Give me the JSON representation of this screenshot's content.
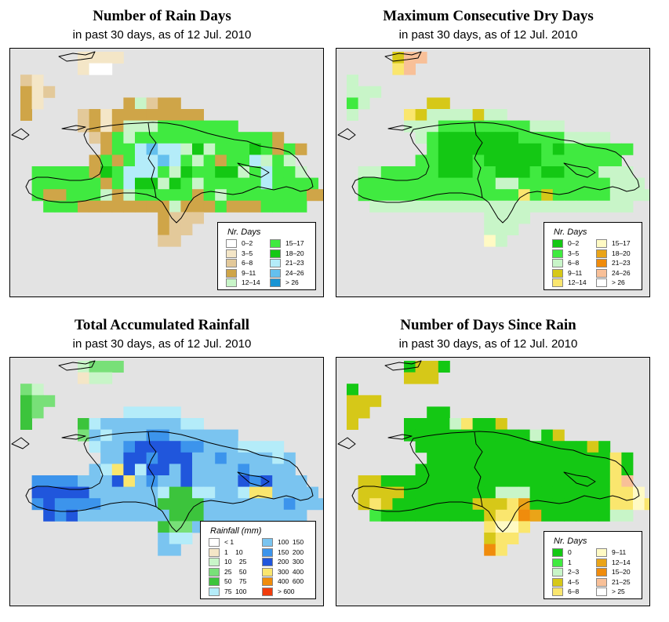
{
  "panels": [
    {
      "id": "rain-days",
      "title": "Number of Rain Days",
      "subtitle": "in past 30 days, as of  12 Jul. 2010",
      "legend": {
        "title": "Nr. Days",
        "items": [
          {
            "label": "0–2",
            "color": "#ffffff"
          },
          {
            "label": "3–5",
            "color": "#f4e6c7"
          },
          {
            "label": "6–8",
            "color": "#e3c99a"
          },
          {
            "label": "9–11",
            "color": "#cfa548"
          },
          {
            "label": "12–14",
            "color": "#c8f5c8"
          },
          {
            "label": "15–17",
            "color": "#40ea40"
          },
          {
            "label": "18–20",
            "color": "#14c814"
          },
          {
            "label": "21–23",
            "color": "#b4ecf9"
          },
          {
            "label": "24–26",
            "color": "#64c0ee"
          },
          {
            "label": "> 26",
            "color": "#1894d4"
          }
        ]
      },
      "palette": [
        "#ffffff",
        "#f4e6c7",
        "#e3c99a",
        "#cfa548",
        "#c8f5c8",
        "#40ea40",
        "#14c814",
        "#b4ecf9",
        "#64c0ee",
        "#1894d4"
      ],
      "grid": [
        ". . . . . 1 1 1 1 . . . . . . . . . . . . . . . . . .",
        ". . . . . 1 0 0 . . . . . . . . . . . . . . . . . . .",
        "2 1 . . . . . . . . . . . . . . . . . . . . . . . . .",
        "3 1 2 . . . . . . . . . . . . . . . . . . . . . . . .",
        "3 1 . . . . . . . 3 4 2 3 3 . . . . . . . . . . . . .",
        "3 . . . . 2 3 1 3 3 3 3 3 3 3 3 . . . . . . . . . . .",
        ". . . . . 2 3 1 3 4 4 4 5 5 5 5 5 5 5 . . . . . . . .",
        ". . . . . . 2 3 5 4 5 5 5 5 5 5 5 5 5 5 5 5 3 . . . .",
        ". . . . . . . 3 5 5 7 8 7 7 4 6 4 5 5 5 6 5 3 5 3 . .",
        ". . . . . . 3 5 3 5 7 7 8 7 5 4 5 3 5 5 7 4 5 4 . . .",
        ". 5 5 5 5 5 3 6 5 7 7 7 5 4 6 5 5 6 6 4 5 7 5 5 4 . .",
        ". 5 5 5 5 5 5 3 5 7 6 6 4 6 5 4 5 5 5 5 5 7 5 5 5 5 .",
        ". 5 3 3 5 5 5 4 3 4 5 5 5 5 5 3 5 4 5 5 5 5 5 5 5 3 3",
        ". . 5 5 5 3 3 3 3 3 3 3 3 4 3 3 3 5 3 3 3 5 5 5 5 . .",
        ". . . . . . . . . . . . 3 2 2 2 . . . . . . . . . . .",
        ". . . . . . . . . . . . 3 2 2 . . . . . . . . . . . .",
        ". . . . . . . . . . . . 2 2 . . . . . . . . . . . . ."
      ]
    },
    {
      "id": "dry-days",
      "title": "Maximum Consecutive Dry Days",
      "subtitle": "in past 30 days, as of  12 Jul. 2010",
      "legend": {
        "title": "Nr. Days",
        "items": [
          {
            "label": "0–2",
            "color": "#14c814"
          },
          {
            "label": "3–5",
            "color": "#40ea40"
          },
          {
            "label": "6–8",
            "color": "#c8f5c8"
          },
          {
            "label": "9–11",
            "color": "#d6c818"
          },
          {
            "label": "12–14",
            "color": "#fae66e"
          },
          {
            "label": "15–17",
            "color": "#fffac4"
          },
          {
            "label": "18–20",
            "color": "#eaa418"
          },
          {
            "label": "21–23",
            "color": "#f08c0c"
          },
          {
            "label": "24–26",
            "color": "#f8c098"
          },
          {
            "label": "> 26",
            "color": "#ffffff"
          }
        ]
      },
      "palette": [
        "#14c814",
        "#40ea40",
        "#c8f5c8",
        "#d6c818",
        "#fae66e",
        "#fffac4",
        "#eaa418",
        "#f08c0c",
        "#f8c098",
        "#ffffff"
      ],
      "grid": [
        ". . . . 3 8 8 . . . . . . . . . . . . . . . . . . . .",
        ". . . . 4 8 . . . . . . . . . . . . . . . . . . . . .",
        "2 . . . . . . . . . . . . . . . . . . . . . . . . . .",
        "2 2 2 . . . . . . . . . . . . . . . . . . . . . . . .",
        "1 2 . . . . . 3 3 . . . . . . . . . . . . . . . . . .",
        "2 . . . . 4 3 2 2 2 2 3 2 2 . . . . . . . . . . . . .",
        ". . . . . 2 2 2 1 1 1 1 1 1 1 1 2 2 2 . . . . . . . .",
        ". . . . . . 2 1 0 0 0 0 0 0 0 1 1 1 1 2 2 2 2 . . . .",
        ". . . . . . . 1 0 0 0 0 0 0 0 0 0 1 0 1 1 1 1 1 1 . .",
        ". . . . . . 1 1 0 0 0 1 0 0 0 0 0 1 1 1 1 1 1 1 . . .",
        ". 2 2 1 1 1 1 1 0 0 0 1 1 0 0 0 1 0 0 1 1 1 2 2 2 . .",
        ". 1 1 1 1 1 1 1 1 1 1 1 1 2 2 1 1 1 1 1 1 1 1 2 2 2 .",
        ". 1 1 1 1 1 1 1 1 1 1 1 1 1 1 4 1 3 1 1 1 1 1 2 2 2 2",
        ". . 2 2 2 2 2 2 2 2 2 2 2 2 2 2 2 2 2 2 2 2 2 2 2 . .",
        ". . . . . . . . . . . . 2 2 2 2 . . . . . . . . . . .",
        ". . . . . . . . . . . . 2 2 2 . . . . . . . . . . . .",
        ". . . . . . . . . . . . 5 2 . . . . . . . . . . . . ."
      ]
    },
    {
      "id": "rainfall",
      "title": "Total Accumulated Rainfall",
      "subtitle": "in past 30 days, as of  12 Jul. 2010",
      "legend": {
        "title": "Rainfall (mm)",
        "items": [
          {
            "label": "< 1",
            "color": "#ffffff"
          },
          {
            "label": "1    10",
            "color": "#f4e6c7"
          },
          {
            "label": "10    25",
            "color": "#c8f5c8"
          },
          {
            "label": "25    50",
            "color": "#78e078"
          },
          {
            "label": "50    75",
            "color": "#3cc43c"
          },
          {
            "label": "75  100",
            "color": "#b4ecf9"
          },
          {
            "label": "100  150",
            "color": "#7ac4f0"
          },
          {
            "label": "150  200",
            "color": "#3c94ec"
          },
          {
            "label": "200  300",
            "color": "#2056dc"
          },
          {
            "label": "300  400",
            "color": "#fae66e"
          },
          {
            "label": "400  600",
            "color": "#f08c0c"
          },
          {
            "label": "> 600",
            "color": "#f03c0c"
          }
        ]
      },
      "palette": [
        "#ffffff",
        "#f4e6c7",
        "#c8f5c8",
        "#78e078",
        "#3cc43c",
        "#b4ecf9",
        "#7ac4f0",
        "#3c94ec",
        "#2056dc",
        "#fae66e",
        "#f08c0c",
        "#f03c0c"
      ],
      "grid": [
        ". . . . . 2 3 3 3 . . . . . . . . . . . . . . . . . .",
        ". . . . . 1 2 2 . . . . . . . . . . . . . . . . . . .",
        "3 2 . . . . . . . . . . . . . . . . . . . . . . . . .",
        "4 3 3 . . . . . . . . . . . . . . . . . . . . . . . .",
        "4 3 . . . . . . . 5 5 5 5 5 . . . . . . . . . . . . .",
        "4 . . . . 4 5 6 6 6 6 6 6 6 5 5 . . . . . . . . . . .",
        ". . . . . 3 6 5 6 6 6 7 7 6 6 6 6 6 6 . . . . . . . .",
        ". . . . . . 5 6 6 7 8 8 8 8 7 7 6 6 6 5 5 5 5 . . . .",
        ". . . . . . . 6 6 8 8 7 8 8 8 6 6 7 6 6 6 6 5 6 . . .",
        ". . . . . . 6 5 9 8 5 8 8 6 8 6 6 6 6 7 6 6 6 6 . . .",
        ". 7 7 7 7 6 6 6 8 9 6 7 6 6 8 6 6 6 6 8 7 8 6 6 6 . .",
        ". 8 8 8 8 8 6 6 6 6 6 6 5 4 4 5 5 6 6 5 9 9 6 6 6 6 .",
        ". 7 8 7 7 7 7 6 6 6 6 6 4 4 4 4 6 6 6 6 6 6 6 7 6 6 6",
        ". . 8 7 8 6 6 6 6 6 6 6 6 4 4 4 6 6 6 6 6 6 6 6 6 . .",
        ". . . . . . . . . . . . 4 3 3 6 . . . . . . . . . . .",
        ". . . . . . . . . . . . 6 5 5 . . . . . . . . . . . .",
        ". . . . . . . . . . . . 6 6 . . . . . . . . . . . . ."
      ]
    },
    {
      "id": "since-rain",
      "title": "Number of Days Since Rain",
      "subtitle": "in past 30 days, as of  12 Jul. 2010",
      "legend": {
        "title": "Nr. Days",
        "items": [
          {
            "label": "0",
            "color": "#14c814"
          },
          {
            "label": "1",
            "color": "#40ea40"
          },
          {
            "label": "2–3",
            "color": "#c8f5c8"
          },
          {
            "label": "4–5",
            "color": "#d6c818"
          },
          {
            "label": "6–8",
            "color": "#fae66e"
          },
          {
            "label": "9–11",
            "color": "#fffac4"
          },
          {
            "label": "12–14",
            "color": "#eaa418"
          },
          {
            "label": "15–20",
            "color": "#f08c0c"
          },
          {
            "label": "21–25",
            "color": "#f8c098"
          },
          {
            "label": "> 25",
            "color": "#ffffff"
          }
        ]
      },
      "palette": [
        "#14c814",
        "#40ea40",
        "#c8f5c8",
        "#d6c818",
        "#fae66e",
        "#fffac4",
        "#eaa418",
        "#f08c0c",
        "#f8c098",
        "#ffffff"
      ],
      "grid": [
        ". . . . . 0 3 3 0 . . . . . . . . . . . . . . . . . .",
        ". . . . . 3 3 3 . . . . . . . . . . . . . . . . . . .",
        "0 . . . . . . . . . . . . . . . . . . . . . . . . . .",
        "3 3 3 . . . . . . . . . . . . . . . . . . . . . . . .",
        "3 3 . . . . . 0 0 . . . . . . . . . . . . . . . . . .",
        "3 . . . . 0 0 0 0 2 4 0 0 3 . . . . . . . . . . . . .",
        ". . . . . 0 0 0 0 0 0 0 0 0 0 0 2 0 3 . . . . . . . .",
        ". . . . . . 0 0 0 0 0 0 0 0 0 0 0 0 0 0 0 3 0 . . . .",
        ". . . . . . . 0 0 0 0 0 0 0 0 0 0 0 0 0 0 0 0 4 0 . .",
        ". . . . . . 0 0 0 0 0 0 0 0 0 0 0 0 0 0 0 0 0 4 0 . .",
        ". 3 3 0 0 0 0 0 0 0 0 0 0 0 0 0 0 0 0 0 0 0 0 4 8 . .",
        ". 3 3 3 3 0 0 0 0 0 0 0 0 2 2 2 0 0 0 0 0 0 0 4 4 5 .",
        ". 3 4 3 0 0 0 0 0 0 0 3 3 3 4 6 0 0 0 0 0 0 0 4 4 5 4",
        ". . 1 0 0 0 0 0 0 0 0 0 3 4 4 7 6 0 0 0 0 0 0 2 2 . .",
        ". . . . . . . . . . . . 4 5 5 4 . . . . . . . . . . .",
        ". . . . . . . . . . . . 3 4 4 . . . . . . . . . . . .",
        ". . . . . . . . . . . . 7 4 . . . . . . . . . . . . ."
      ]
    }
  ]
}
